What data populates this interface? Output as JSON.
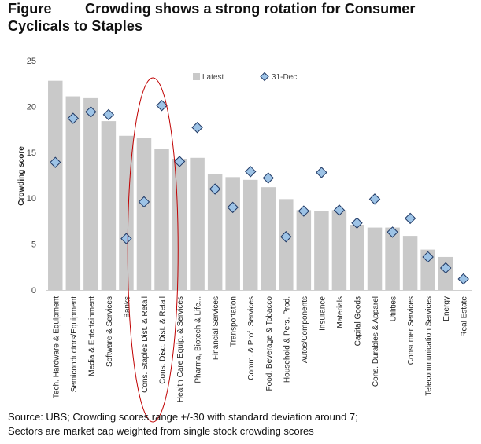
{
  "title": {
    "prefix": "Figure",
    "line1": "Crowding shows a strong rotation for Consumer",
    "line2": "Cyclicals to Staples"
  },
  "source": {
    "line1": "Source: UBS; Crowding scores range +/-30 with standard deviation around 7;",
    "line2": "Sectors are market cap weighted from single stock crowding scores"
  },
  "colors": {
    "bar": "#c9c9c9",
    "marker_fill": "#9dc3e6",
    "marker_stroke": "#1f3864",
    "highlight": "#c00000",
    "axis_text": "#444444"
  },
  "chart_data": {
    "type": "bar",
    "ylabel": "Crowding score",
    "ylim": [
      0,
      25
    ],
    "yticks": [
      0,
      5,
      10,
      15,
      20,
      25
    ],
    "grid": false,
    "legend_position": "top-right",
    "categories": [
      "Tech. Hardware & Equipment",
      "Semiconductors/Equipment",
      "Media & Entertainment",
      "Software & Services",
      "Banks",
      "Cons. Staples Dist. & Retail",
      "Cons. Disc. Dist. & Retail",
      "Health Care Equip. & Services",
      "Pharma, Biotech & Life...",
      "Financial Services",
      "Transportation",
      "Comm. & Prof. Services",
      "Food, Beverage & Tobacco",
      "Household & Pers. Prod.",
      "Autos/Components",
      "Insurance",
      "Materials",
      "Capital Goods",
      "Cons. Durables & Apparel",
      "Utilities",
      "Consumer Services",
      "Telecommunication Services",
      "Energy",
      "Real Estate"
    ],
    "series": [
      {
        "name": "Latest",
        "kind": "bar",
        "values": [
          22.8,
          21.1,
          20.9,
          18.4,
          16.8,
          16.6,
          15.4,
          14.3,
          14.4,
          12.6,
          12.3,
          12.0,
          11.2,
          9.9,
          8.7,
          8.6,
          8.7,
          7.1,
          6.8,
          6.8,
          5.9,
          4.4,
          3.6,
          0.0
        ]
      },
      {
        "name": "31-Dec",
        "kind": "marker",
        "values": [
          13.9,
          18.7,
          19.4,
          19.1,
          5.6,
          9.6,
          20.1,
          14.0,
          17.7,
          11.0,
          9.0,
          12.9,
          12.2,
          5.8,
          8.6,
          12.8,
          8.7,
          7.3,
          9.9,
          6.3,
          7.8,
          3.6,
          2.4,
          1.2
        ]
      }
    ],
    "highlight_ellipse_categories": [
      "Cons. Staples Dist. & Retail",
      "Cons. Disc. Dist. & Retail"
    ]
  }
}
